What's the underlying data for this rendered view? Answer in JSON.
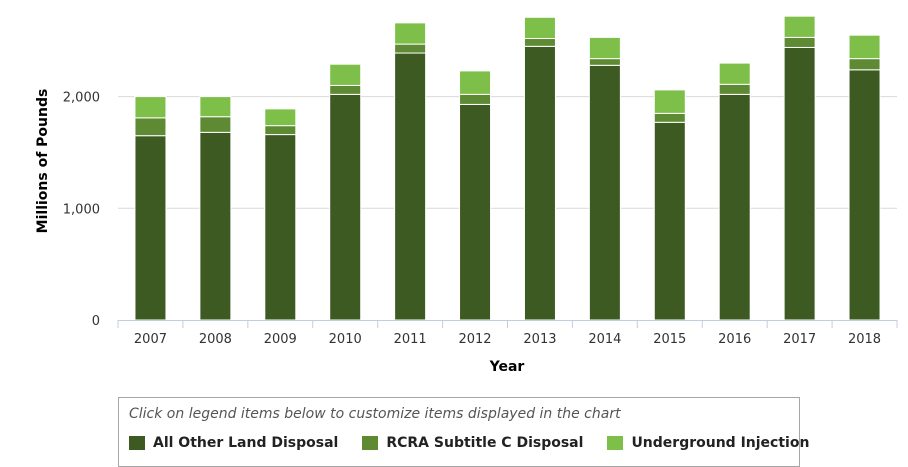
{
  "chart_data": {
    "type": "bar",
    "stacked": true,
    "xlabel": "Year",
    "ylabel": "Millions of Pounds",
    "ylim": [
      0,
      2700
    ],
    "yticks": [
      0,
      1000,
      2000
    ],
    "ytick_labels": [
      "0",
      "1,000",
      "2,000"
    ],
    "grid": true,
    "categories": [
      "2007",
      "2008",
      "2009",
      "2010",
      "2011",
      "2012",
      "2013",
      "2014",
      "2015",
      "2016",
      "2017",
      "2018"
    ],
    "series": [
      {
        "name": "All Other Land Disposal",
        "color": "#3e5a23",
        "values": [
          1650,
          1680,
          1660,
          2020,
          2390,
          1930,
          2450,
          2280,
          1770,
          2020,
          2440,
          2240
        ]
      },
      {
        "name": "RCRA Subtitle C Disposal",
        "color": "#5d8a32",
        "values": [
          160,
          140,
          80,
          80,
          80,
          90,
          70,
          60,
          80,
          90,
          90,
          100
        ]
      },
      {
        "name": "Underground Injection",
        "color": "#7dbf48",
        "values": [
          190,
          180,
          150,
          190,
          190,
          210,
          190,
          190,
          210,
          190,
          190,
          210
        ]
      }
    ]
  },
  "legend": {
    "note": "Click on legend items below to customize items displayed in the chart"
  }
}
